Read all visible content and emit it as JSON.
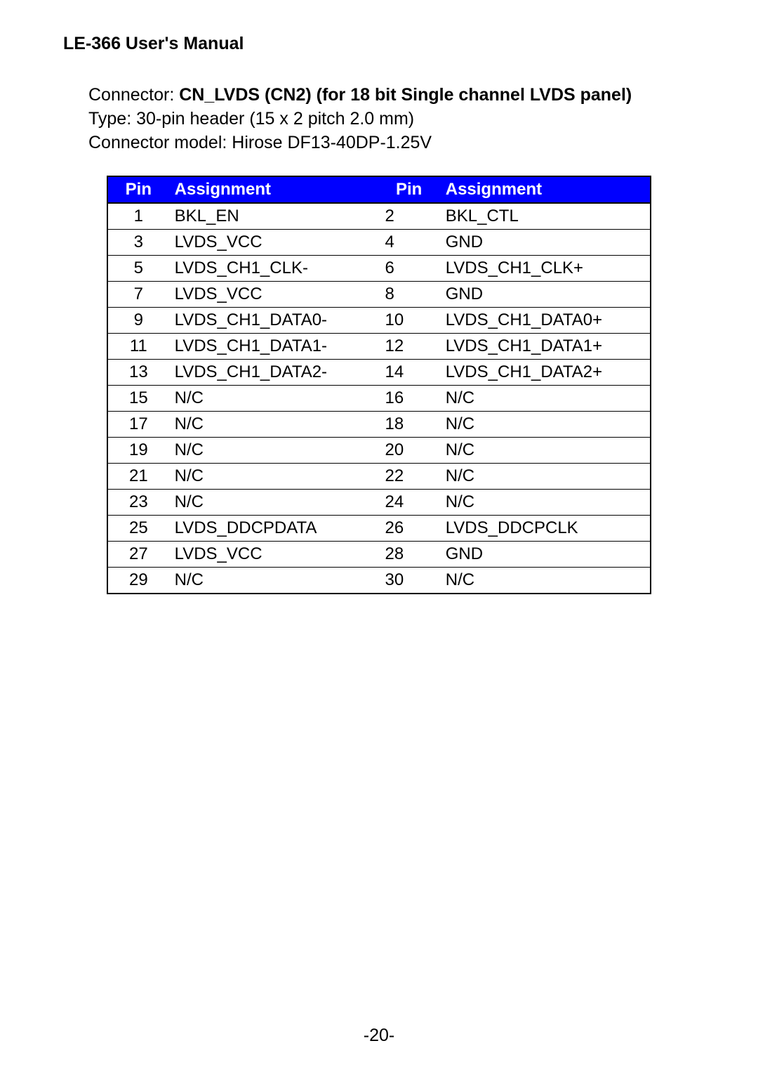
{
  "doc": {
    "title": "LE-366 User's Manual",
    "connector_label": "Connector: ",
    "connector_bold": "CN_LVDS (CN2) (for 18 bit Single channel LVDS panel)",
    "type_line": "Type: 30-pin header (15 x 2 pitch 2.0 mm)",
    "model_line": "Connector model: Hirose DF13-40DP-1.25V",
    "page_number": "-20-"
  },
  "pin_table": {
    "type": "table",
    "columns": [
      "Pin",
      "Assignment",
      "Pin",
      "Assignment"
    ],
    "header_bg": "#0000ff",
    "header_fg": "#ffffff",
    "border_color": "#000000",
    "font_size": 24,
    "rows": [
      [
        "1",
        "BKL_EN",
        "2",
        "BKL_CTL"
      ],
      [
        "3",
        "LVDS_VCC",
        "4",
        "GND"
      ],
      [
        "5",
        "LVDS_CH1_CLK-",
        "6",
        "LVDS_CH1_CLK+"
      ],
      [
        "7",
        "LVDS_VCC",
        "8",
        "GND"
      ],
      [
        "9",
        "LVDS_CH1_DATA0-",
        "10",
        "LVDS_CH1_DATA0+"
      ],
      [
        "11",
        "LVDS_CH1_DATA1-",
        "12",
        "LVDS_CH1_DATA1+"
      ],
      [
        "13",
        "LVDS_CH1_DATA2-",
        "14",
        "LVDS_CH1_DATA2+"
      ],
      [
        "15",
        "N/C",
        "16",
        "N/C"
      ],
      [
        "17",
        "N/C",
        "18",
        "N/C"
      ],
      [
        "19",
        "N/C",
        "20",
        "N/C"
      ],
      [
        "21",
        "N/C",
        "22",
        "N/C"
      ],
      [
        "23",
        "N/C",
        "24",
        "N/C"
      ],
      [
        "25",
        "LVDS_DDCPDATA",
        "26",
        "LVDS_DDCPCLK"
      ],
      [
        "27",
        "LVDS_VCC",
        "28",
        "GND"
      ],
      [
        "29",
        "N/C",
        "30",
        "N/C"
      ]
    ]
  }
}
